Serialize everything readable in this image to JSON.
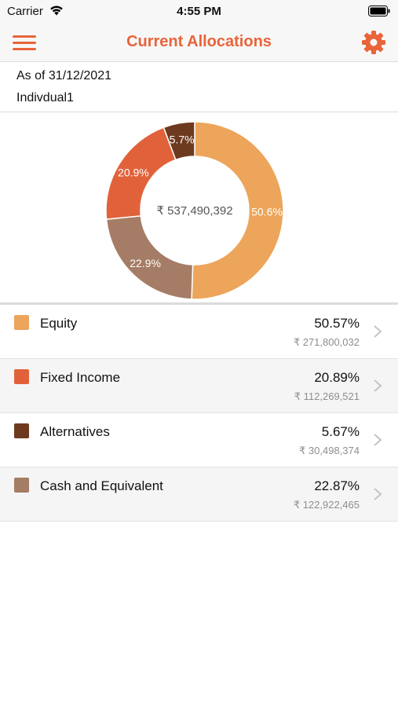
{
  "status_bar": {
    "carrier": "Carrier",
    "time": "4:55 PM"
  },
  "nav": {
    "title": "Current Allocations"
  },
  "info": {
    "as_of": "As of 31/12/2021",
    "account": "Indivdual1"
  },
  "chart_data": {
    "type": "pie",
    "center_label": "₹ 537,490,392",
    "slices": [
      {
        "name": "Equity",
        "value": 50.6,
        "label": "50.6%",
        "color": "#eca55a"
      },
      {
        "name": "Cash and Equivalent",
        "value": 22.9,
        "label": "22.9%",
        "color": "#a57c65"
      },
      {
        "name": "Fixed Income",
        "value": 20.9,
        "label": "20.9%",
        "color": "#e1623a"
      },
      {
        "name": "Alternatives",
        "value": 5.7,
        "label": "5.7%",
        "color": "#6e3a1f"
      }
    ]
  },
  "allocations": [
    {
      "name": "Equity",
      "percent": "50.57%",
      "amount": "₹ 271,800,032",
      "color": "#eca55a"
    },
    {
      "name": "Fixed Income",
      "percent": "20.89%",
      "amount": "₹ 112,269,521",
      "color": "#e1623a"
    },
    {
      "name": "Alternatives",
      "percent": "5.67%",
      "amount": "₹ 30,498,374",
      "color": "#6e3a1f"
    },
    {
      "name": "Cash and Equivalent",
      "percent": "22.87%",
      "amount": "₹ 122,922,465",
      "color": "#a57c65"
    }
  ]
}
